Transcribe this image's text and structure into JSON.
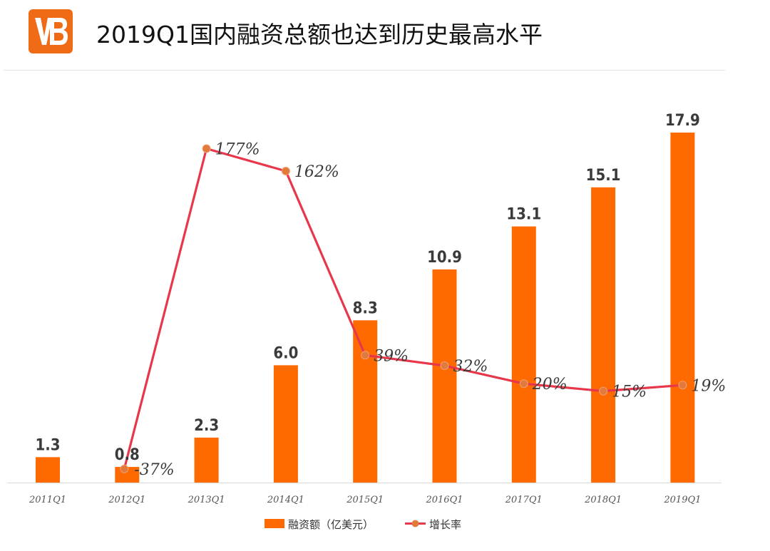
{
  "header": {
    "title": "2019Q1国内融资总额也达到历史最高水平",
    "logo_text": "VB"
  },
  "colors": {
    "bar": "#ff6a00",
    "line": "#e8364a",
    "marker": "#e2793d",
    "logo_bg": "#ef6b16"
  },
  "chart_data": {
    "type": "bar",
    "title": "2019Q1国内融资总额也达到历史最高水平",
    "categories": [
      "2011Q1",
      "2012Q1",
      "2013Q1",
      "2014Q1",
      "2015Q1",
      "2016Q1",
      "2017Q1",
      "2018Q1",
      "2019Q1"
    ],
    "series": [
      {
        "name": "融资额（亿美元）",
        "type": "bar",
        "axis": "left",
        "values": [
          1.3,
          0.8,
          2.3,
          6.0,
          8.3,
          10.9,
          13.1,
          15.1,
          17.9
        ],
        "labels": [
          "1.3",
          "0.8",
          "2.3",
          "6.0",
          "8.3",
          "10.9",
          "13.1",
          "15.1",
          "17.9"
        ]
      },
      {
        "name": "增长率",
        "type": "line",
        "axis": "right",
        "values": [
          null,
          -37,
          177,
          162,
          39,
          32,
          20,
          15,
          19
        ],
        "labels": [
          "",
          "-37%",
          "177%",
          "162%",
          "39%",
          "32%",
          "20%",
          "15%",
          "19%"
        ]
      }
    ],
    "ylim_left": [
      0,
      20
    ],
    "ylim_right": [
      -50,
      200
    ],
    "legend_position": "bottom-center",
    "grid": false
  }
}
